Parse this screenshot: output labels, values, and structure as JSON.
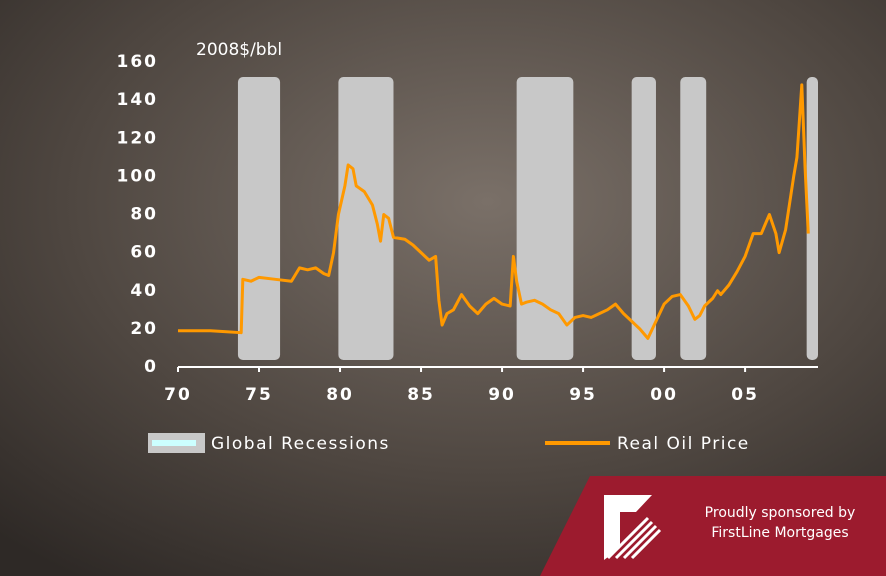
{
  "chart_data": {
    "type": "line",
    "ylabel": "2008$/bbl",
    "x": [
      1970,
      1971,
      1972,
      1973,
      1973.9,
      1974.0,
      1974.5,
      1975,
      1976,
      1977,
      1977.5,
      1978,
      1978.5,
      1979,
      1979.3,
      1979.6,
      1979.9,
      1980.3,
      1980.5,
      1980.8,
      1981,
      1981.5,
      1982,
      1982.3,
      1982.5,
      1982.7,
      1983,
      1983.3,
      1984,
      1984.5,
      1985,
      1985.5,
      1985.9,
      1986.1,
      1986.3,
      1986.6,
      1987,
      1987.5,
      1988,
      1988.5,
      1989,
      1989.5,
      1990,
      1990.5,
      1990.7,
      1990.9,
      1991.2,
      1991.5,
      1992,
      1992.5,
      1993,
      1993.5,
      1994,
      1994.5,
      1995,
      1995.5,
      1996,
      1996.5,
      1997,
      1997.5,
      1998,
      1998.5,
      1999,
      1999.5,
      2000,
      2000.5,
      2001,
      2001.5,
      2001.9,
      2002.2,
      2002.5,
      2003,
      2003.3,
      2003.5,
      2004,
      2004.5,
      2005,
      2005.5,
      2006,
      2006.5,
      2006.9,
      2007.1,
      2007.5,
      2008,
      2008.2,
      2008.5,
      2008.7,
      2008.9
    ],
    "series": [
      {
        "name": "Real Oil Price",
        "color": "#ff9900",
        "values": [
          19,
          19,
          19,
          18.5,
          18,
          46,
          45,
          47,
          46,
          45,
          52,
          51,
          52,
          49,
          48,
          60,
          80,
          95,
          106,
          104,
          95,
          92,
          85,
          75,
          66,
          80,
          78,
          68,
          67,
          64,
          60,
          56,
          58,
          35,
          22,
          28,
          30,
          38,
          32,
          28,
          33,
          36,
          33,
          32,
          58,
          45,
          33,
          34,
          35,
          33,
          30,
          28,
          22,
          26,
          27,
          26,
          28,
          30,
          33,
          28,
          24,
          20,
          15,
          24,
          33,
          37,
          38,
          32,
          25,
          27,
          32,
          36,
          40,
          38,
          43,
          50,
          58,
          70,
          70,
          80,
          70,
          60,
          72,
          100,
          110,
          148,
          105,
          70
        ]
      }
    ],
    "recessions": {
      "name": "Global Recessions",
      "color": "#c8c8c8",
      "ranges": [
        [
          1973.7,
          1976.3
        ],
        [
          1979.9,
          1983.3
        ],
        [
          1990.9,
          1994.4
        ],
        [
          1998.0,
          1999.5
        ],
        [
          2001.0,
          2002.6
        ],
        [
          2008.8,
          2009.5
        ]
      ]
    },
    "xlim": [
      1970,
      2009.5
    ],
    "xticks": [
      {
        "value": 1970,
        "label": "70"
      },
      {
        "value": 1975,
        "label": "75"
      },
      {
        "value": 1980,
        "label": "80"
      },
      {
        "value": 1985,
        "label": "85"
      },
      {
        "value": 1990,
        "label": "90"
      },
      {
        "value": 1995,
        "label": "95"
      },
      {
        "value": 2000,
        "label": "00"
      },
      {
        "value": 2005,
        "label": "05"
      }
    ],
    "ylim": [
      0,
      160
    ],
    "yticks": [
      0,
      20,
      40,
      60,
      80,
      100,
      120,
      140,
      160
    ],
    "grid": false
  },
  "sponsor": {
    "line1": "Proudly sponsored by",
    "line2": "FirstLine Mortgages"
  }
}
